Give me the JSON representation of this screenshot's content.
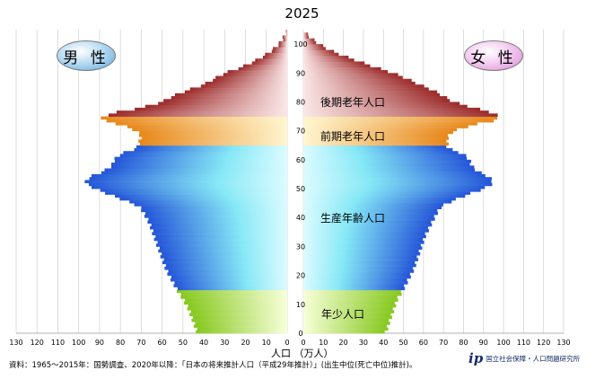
{
  "title": "2025",
  "gender": {
    "male": "男 性",
    "female": "女 性"
  },
  "bands": {
    "elderly_late": "後期老年人口",
    "elderly_early": "前期老年人口",
    "working": "生産年齢人口",
    "young": "年少人口"
  },
  "x_axis_label": "人口 （万人）",
  "source": "資料：1965～2015年：国勢調査、2020年以降：「日本の将来推計人口（平成29年推計）」(出生中位(死亡中位)推計)。",
  "org": "国立社会保障・人口問題研究所",
  "colors": {
    "young": "#8fcf2a",
    "working": "#2f6bd6",
    "elderly_early": "#e8901e",
    "elderly_late": "#a83232",
    "background": "#ffffff"
  },
  "chart_data": {
    "type": "bar",
    "orientation": "horizontal-pyramid",
    "title": "2025",
    "xlabel": "人口 （万人）",
    "ylabel": "",
    "x_ticks": [
      130,
      120,
      110,
      100,
      90,
      80,
      70,
      60,
      50,
      40,
      30,
      20,
      10,
      0
    ],
    "y_ticks": [
      0,
      10,
      20,
      30,
      40,
      50,
      60,
      70,
      80,
      90,
      100
    ],
    "xlim": [
      0,
      130
    ],
    "ylim": [
      0,
      105
    ],
    "age_groups": [
      {
        "label": "年少人口",
        "from": 0,
        "to": 14
      },
      {
        "label": "生産年齢人口",
        "from": 15,
        "to": 64
      },
      {
        "label": "前期老年人口",
        "from": 65,
        "to": 74
      },
      {
        "label": "後期老年人口",
        "from": 75,
        "to": 105
      }
    ],
    "series": [
      {
        "name": "男 性",
        "points": [
          [
            0,
            43
          ],
          [
            4,
            45
          ],
          [
            8,
            47
          ],
          [
            12,
            50
          ],
          [
            14,
            52
          ],
          [
            18,
            55
          ],
          [
            22,
            58
          ],
          [
            26,
            60
          ],
          [
            30,
            62
          ],
          [
            34,
            64
          ],
          [
            38,
            66
          ],
          [
            42,
            69
          ],
          [
            44,
            71
          ],
          [
            46,
            78
          ],
          [
            48,
            85
          ],
          [
            50,
            92
          ],
          [
            52,
            97
          ],
          [
            54,
            95
          ],
          [
            56,
            88
          ],
          [
            58,
            84
          ],
          [
            60,
            83
          ],
          [
            62,
            80
          ],
          [
            64,
            72
          ],
          [
            66,
            71
          ],
          [
            68,
            70
          ],
          [
            70,
            72
          ],
          [
            72,
            79
          ],
          [
            74,
            90
          ],
          [
            76,
            85
          ],
          [
            78,
            70
          ],
          [
            80,
            60
          ],
          [
            82,
            55
          ],
          [
            84,
            48
          ],
          [
            86,
            40
          ],
          [
            88,
            35
          ],
          [
            90,
            30
          ],
          [
            92,
            22
          ],
          [
            94,
            16
          ],
          [
            96,
            11
          ],
          [
            98,
            7
          ],
          [
            100,
            4
          ],
          [
            102,
            2
          ],
          [
            104,
            0.5
          ]
        ]
      },
      {
        "name": "女 性",
        "points": [
          [
            0,
            41
          ],
          [
            4,
            43
          ],
          [
            8,
            45
          ],
          [
            12,
            47
          ],
          [
            14,
            49
          ],
          [
            18,
            52
          ],
          [
            22,
            55
          ],
          [
            26,
            57
          ],
          [
            30,
            59
          ],
          [
            34,
            61
          ],
          [
            38,
            64
          ],
          [
            42,
            67
          ],
          [
            44,
            69
          ],
          [
            46,
            75
          ],
          [
            48,
            82
          ],
          [
            50,
            90
          ],
          [
            52,
            95
          ],
          [
            54,
            93
          ],
          [
            56,
            87
          ],
          [
            58,
            84
          ],
          [
            60,
            83
          ],
          [
            62,
            80
          ],
          [
            64,
            72
          ],
          [
            66,
            72
          ],
          [
            68,
            72
          ],
          [
            70,
            75
          ],
          [
            72,
            84
          ],
          [
            74,
            98
          ],
          [
            76,
            96
          ],
          [
            78,
            85
          ],
          [
            80,
            75
          ],
          [
            82,
            70
          ],
          [
            84,
            65
          ],
          [
            86,
            58
          ],
          [
            88,
            52
          ],
          [
            90,
            45
          ],
          [
            92,
            36
          ],
          [
            94,
            28
          ],
          [
            96,
            20
          ],
          [
            98,
            13
          ],
          [
            100,
            8
          ],
          [
            102,
            4
          ],
          [
            104,
            1
          ]
        ]
      }
    ]
  }
}
